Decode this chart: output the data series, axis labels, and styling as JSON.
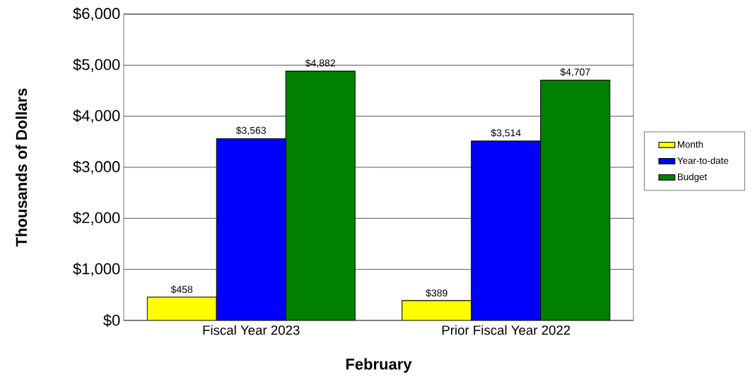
{
  "chart_data": {
    "type": "bar",
    "xlabel": "February",
    "ylabel": "Thousands of Dollars",
    "categories": [
      "Fiscal Year 2023",
      "Prior Fiscal Year 2022"
    ],
    "series": [
      {
        "name": "Month",
        "color": "#ffff00",
        "values": [
          458,
          389
        ],
        "value_labels": [
          "$458",
          "$389"
        ]
      },
      {
        "name": "Year-to-date",
        "color": "#0000ff",
        "values": [
          3563,
          3514
        ],
        "value_labels": [
          "$3,563",
          "$3,514"
        ]
      },
      {
        "name": "Budget",
        "color": "#008000",
        "values": [
          4882,
          4707
        ],
        "value_labels": [
          "$4,882",
          "$4,707"
        ]
      }
    ],
    "ylim": [
      0,
      6000
    ],
    "yticks": [
      {
        "value": 0,
        "label": "$0"
      },
      {
        "value": 1000,
        "label": "$1,000"
      },
      {
        "value": 2000,
        "label": "$2,000"
      },
      {
        "value": 3000,
        "label": "$3,000"
      },
      {
        "value": 4000,
        "label": "$4,000"
      },
      {
        "value": 5000,
        "label": "$5,000"
      },
      {
        "value": 6000,
        "label": "$6,000"
      }
    ],
    "grid": "y",
    "legend": "right"
  }
}
